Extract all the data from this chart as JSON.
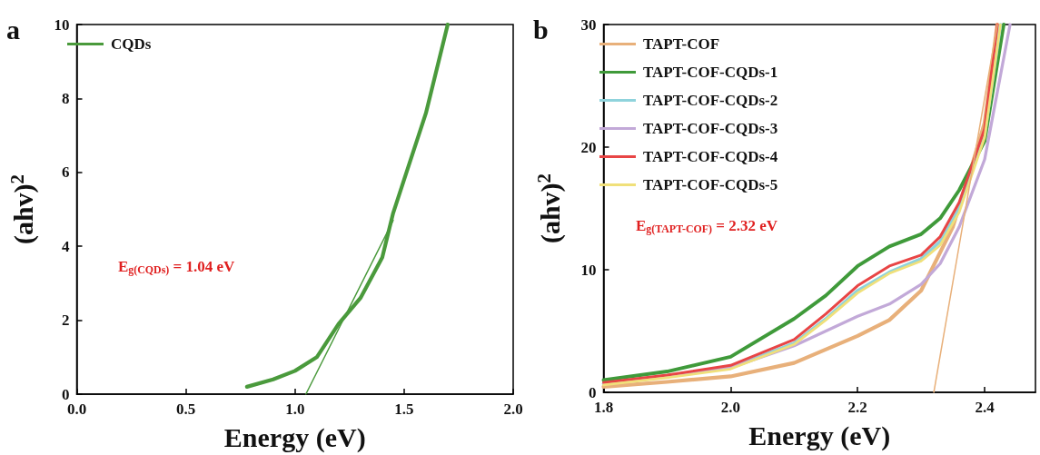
{
  "chart_data": [
    {
      "type": "line",
      "title": "a",
      "xlabel": "Energy (eV)",
      "ylabel": "(ahv)$^{2}$",
      "xlim": [
        0,
        2
      ],
      "xticks": [
        {
          "value": 0,
          "label": "0.0"
        },
        0.5,
        {
          "value": 1,
          "label": "1.0"
        },
        1.5,
        {
          "value": 2,
          "label": "2.0"
        }
      ],
      "ylim": [
        0,
        10
      ],
      "yticks": [
        0,
        2,
        4,
        6,
        8,
        10
      ],
      "grid": false,
      "legend": "top left",
      "marker": "none",
      "annotations": [
        "E$_{g(CQDs)}$ = 1.04 eV"
      ],
      "series": [
        {
          "name": "CQDs",
          "color": "#4a9a3c",
          "x": [
            0.78,
            0.9,
            1.0,
            1.1,
            1.2,
            1.3,
            1.4,
            1.45,
            1.5,
            1.6,
            1.7
          ],
          "values": [
            0.2,
            0.4,
            0.63,
            1.0,
            1.9,
            2.6,
            3.7,
            4.9,
            5.8,
            7.6,
            10
          ]
        },
        {
          "color": "#4a9a3c",
          "x": [
            1.05,
            1.45
          ],
          "values": [
            0,
            4.7
          ]
        }
      ]
    },
    {
      "type": "line",
      "title": "b",
      "xlabel": "Energy (eV)",
      "ylabel": "(ahv)$^{2}$",
      "xlim": [
        1.8,
        2.48
      ],
      "xticks": [
        1.8,
        {
          "value": 2,
          "label": "2.0"
        },
        2.2,
        2.4
      ],
      "ylim": [
        0,
        30
      ],
      "yticks": [
        0,
        10,
        20,
        30
      ],
      "grid": false,
      "legend": "top left",
      "marker": "none",
      "annotations": [
        "E$_{g(TAPT-COF)}$ = 2.32 eV"
      ],
      "series": [
        {
          "name": "TAPT-COF",
          "color": "#e8b07a",
          "x": [
            1.8,
            1.9,
            2.0,
            2.1,
            2.2,
            2.25,
            2.3,
            2.35,
            2.38,
            2.4,
            2.42
          ],
          "values": [
            0.45,
            0.85,
            1.3,
            2.4,
            4.6,
            5.9,
            8.3,
            13.5,
            18.5,
            22,
            30
          ]
        },
        {
          "name": "TAPT-COF-CQDs-1",
          "color": "#3f9a3a",
          "x": [
            1.8,
            1.9,
            2.0,
            2.1,
            2.15,
            2.2,
            2.25,
            2.3,
            2.33,
            2.36,
            2.4,
            2.43
          ],
          "values": [
            1.0,
            1.7,
            2.9,
            6.0,
            7.9,
            10.3,
            11.9,
            12.9,
            14.2,
            16.5,
            20.5,
            30
          ]
        },
        {
          "name": "TAPT-COF-CQDs-2",
          "color": "#8fd3dc",
          "x": [
            1.8,
            1.9,
            2.0,
            2.1,
            2.15,
            2.2,
            2.25,
            2.3,
            2.33,
            2.36,
            2.4,
            2.425
          ],
          "values": [
            0.7,
            1.3,
            2.0,
            4.0,
            6.0,
            8.3,
            9.8,
            10.9,
            12.3,
            15,
            21,
            30
          ]
        },
        {
          "name": "TAPT-COF-CQDs-3",
          "color": "#c2a9d8",
          "x": [
            1.8,
            1.9,
            2.0,
            2.1,
            2.15,
            2.2,
            2.25,
            2.3,
            2.33,
            2.36,
            2.4,
            2.44
          ],
          "values": [
            0.7,
            1.3,
            2.0,
            3.8,
            5.0,
            6.2,
            7.2,
            8.8,
            10.5,
            13.5,
            19,
            30
          ]
        },
        {
          "name": "TAPT-COF-CQDs-4",
          "color": "#e84545",
          "x": [
            1.8,
            1.9,
            2.0,
            2.1,
            2.15,
            2.2,
            2.25,
            2.3,
            2.33,
            2.36,
            2.4,
            2.42
          ],
          "values": [
            0.8,
            1.4,
            2.2,
            4.3,
            6.4,
            8.7,
            10.3,
            11.2,
            12.7,
            15.5,
            21.5,
            30
          ]
        },
        {
          "name": "TAPT-COF-CQDs-5",
          "color": "#f0e07a",
          "x": [
            1.8,
            1.9,
            2.0,
            2.1,
            2.15,
            2.2,
            2.25,
            2.3,
            2.33,
            2.36,
            2.4,
            2.425
          ],
          "values": [
            0.6,
            1.2,
            1.9,
            3.9,
            5.9,
            8.1,
            9.7,
            10.7,
            12,
            14.7,
            20.8,
            30
          ]
        },
        {
          "color": "#e8b07a",
          "x": [
            2.32,
            2.42
          ],
          "values": [
            0,
            30
          ]
        }
      ]
    }
  ]
}
